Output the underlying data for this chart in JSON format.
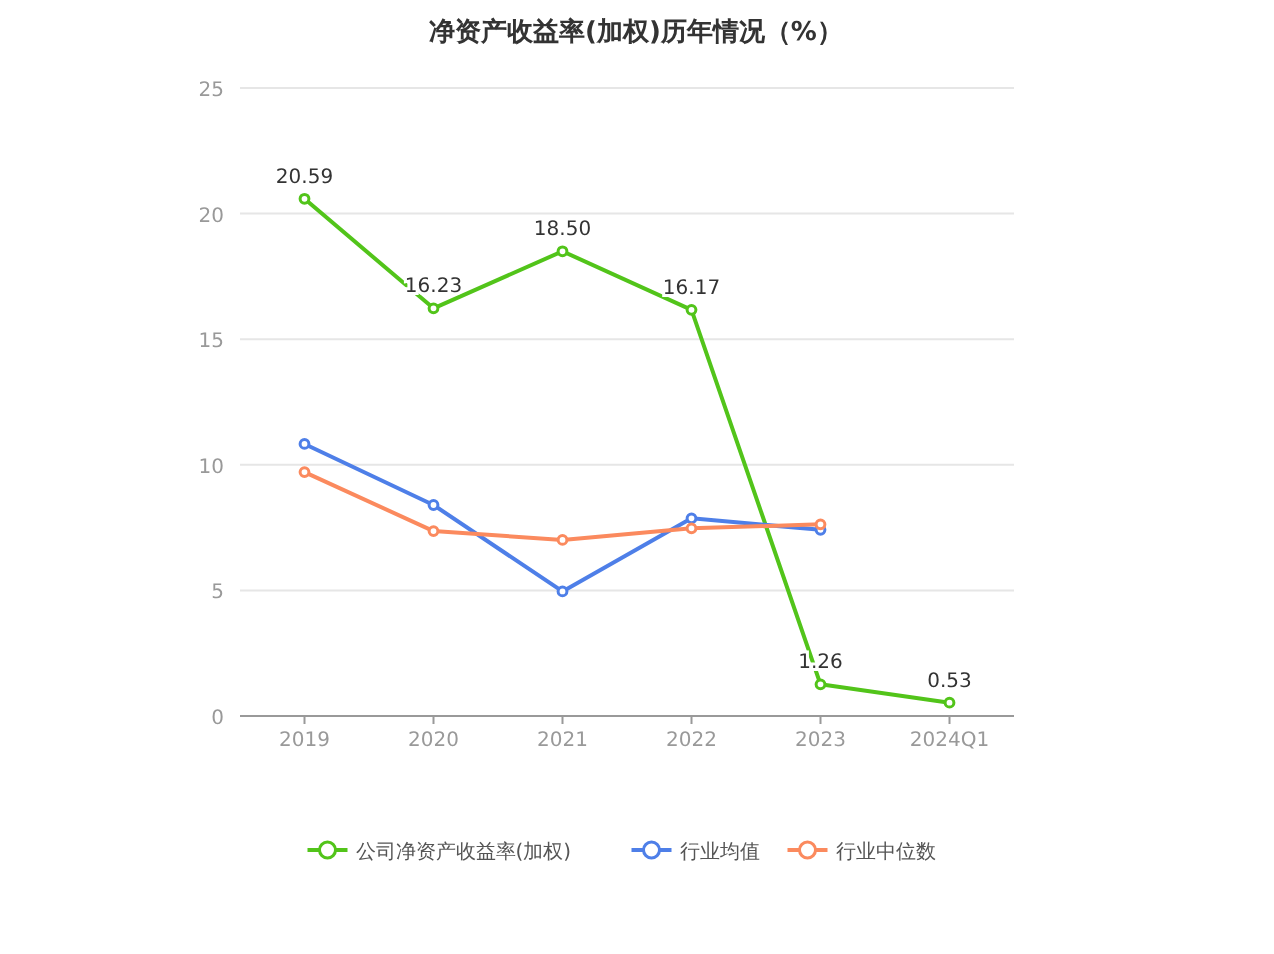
{
  "chart_data": {
    "type": "line",
    "title": "净资产收益率(加权)历年情况（%）",
    "categories": [
      "2019",
      "2020",
      "2021",
      "2022",
      "2023",
      "2024Q1"
    ],
    "series": [
      {
        "name": "公司净资产收益率(加权)",
        "color": "#52c41a",
        "values": [
          20.59,
          16.23,
          18.5,
          16.17,
          1.26,
          0.53
        ],
        "value_labels": [
          "20.59",
          "16.23",
          "18.50",
          "16.17",
          "1.26",
          "0.53"
        ]
      },
      {
        "name": "行业均值",
        "color": "#4e7fe8",
        "values": [
          10.83,
          8.4,
          4.96,
          7.87,
          7.41,
          null
        ]
      },
      {
        "name": "行业中位数",
        "color": "#fb8a5e",
        "values": [
          9.71,
          7.36,
          7.01,
          7.47,
          7.63,
          null
        ]
      }
    ],
    "ylim": [
      0,
      25
    ],
    "yticks": [
      0,
      5,
      10,
      15,
      20,
      25
    ],
    "grid": "y",
    "legend": "bottom",
    "marker": "circle",
    "line_style": "solid"
  }
}
